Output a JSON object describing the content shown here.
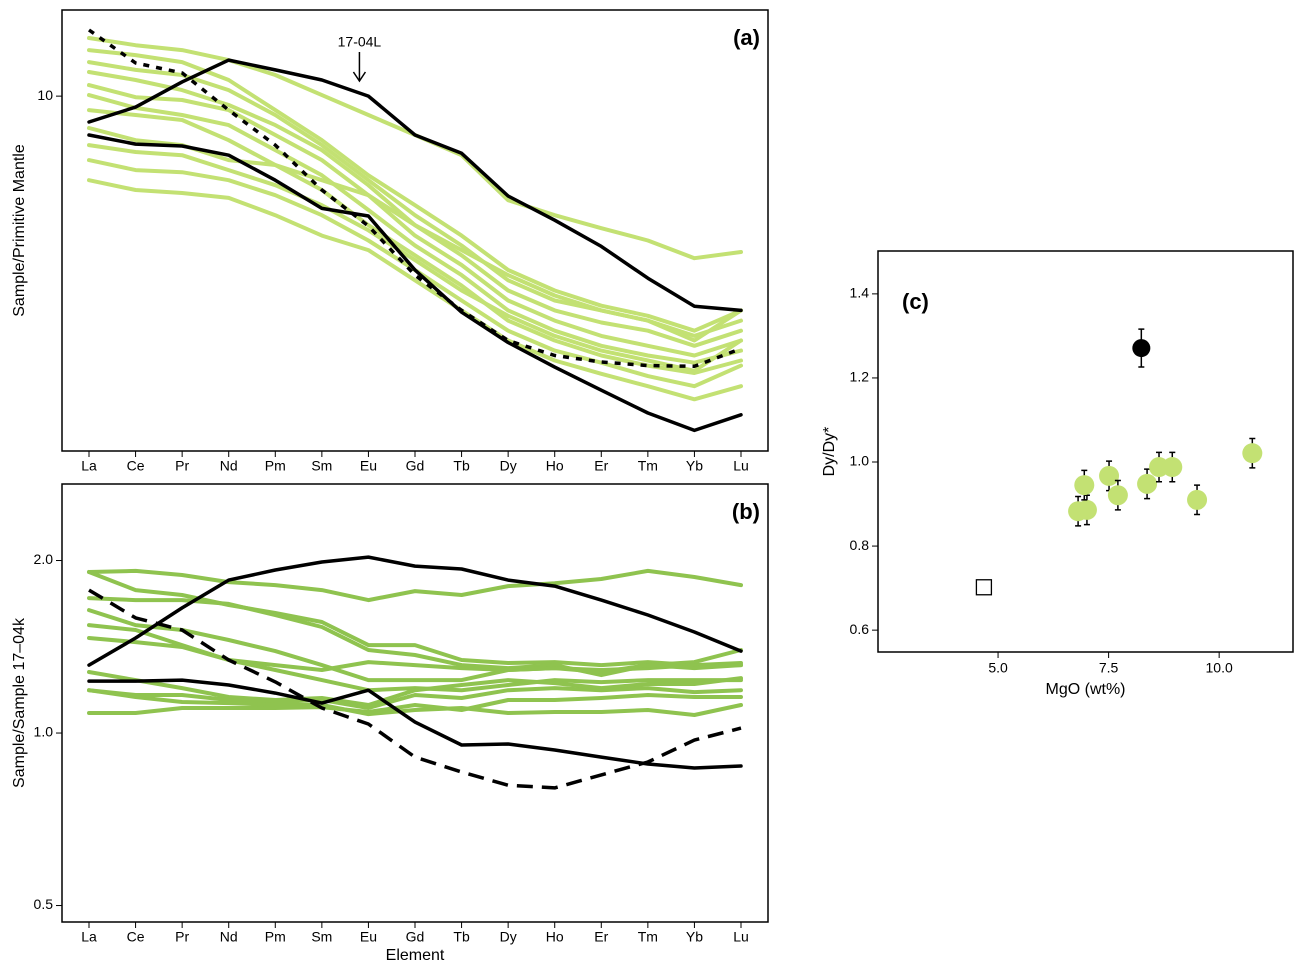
{
  "chart_data": [
    {
      "type": "line",
      "label": "(a)",
      "ylabel": "Sample/Primitive Mantle",
      "log_y": true,
      "categories": [
        "La",
        "Ce",
        "Pr",
        "Nd",
        "Pm",
        "Sm",
        "Eu",
        "Gd",
        "Tb",
        "Dy",
        "Ho",
        "Er",
        "Tm",
        "Yb",
        "Lu"
      ],
      "ylim": [
        2.5,
        14
      ],
      "yticks": [
        10
      ],
      "annotations": [
        {
          "text": "17-04L"
        }
      ],
      "series": [
        {
          "color": "#c3e173",
          "style": "solid",
          "values": [
            12.55,
            12.2,
            11.97,
            11.51,
            10.86,
            10.04,
            9.29,
            8.59,
            7.94,
            6.66,
            6.28,
            5.97,
            5.69,
            5.31,
            5.44
          ]
        },
        {
          "color": "#c3e173",
          "style": "solid",
          "values": [
            11.97,
            11.74,
            11.42,
            10.65,
            9.47,
            8.42,
            7.34,
            6.53,
            5.8,
            5.07,
            4.68,
            4.41,
            4.24,
            4.0,
            4.33
          ]
        },
        {
          "color": "#c3e173",
          "style": "solid",
          "values": [
            11.42,
            11.08,
            10.86,
            10.24,
            9.29,
            8.26,
            7.2,
            6.28,
            5.58,
            4.87,
            4.5,
            4.33,
            4.16,
            3.92,
            4.16
          ]
        },
        {
          "color": "#c3e173",
          "style": "solid",
          "values": [
            10.99,
            10.65,
            10.24,
            9.66,
            8.93,
            8.1,
            7.06,
            6.04,
            5.37,
            4.68,
            4.33,
            4.13,
            4.0,
            3.77,
            4.0
          ]
        },
        {
          "color": "#c3e173",
          "style": "solid",
          "values": [
            10.44,
            9.96,
            9.85,
            9.47,
            8.59,
            7.79,
            6.79,
            5.8,
            5.17,
            4.5,
            4.16,
            3.92,
            3.77,
            3.63,
            3.85
          ]
        },
        {
          "color": "#c3e173",
          "style": "solid",
          "values": [
            10.04,
            9.55,
            9.29,
            8.93,
            8.1,
            7.34,
            6.41,
            5.58,
            4.97,
            4.33,
            4.0,
            3.77,
            3.63,
            3.53,
            3.7
          ]
        },
        {
          "color": "#c3e173",
          "style": "solid",
          "values": [
            9.47,
            9.29,
            9.11,
            8.42,
            7.64,
            6.93,
            6.04,
            5.37,
            4.77,
            4.16,
            3.85,
            3.63,
            3.49,
            3.39,
            3.56
          ]
        },
        {
          "color": "#c3e173",
          "style": "solid",
          "values": [
            8.83,
            8.42,
            8.26,
            7.79,
            7.64,
            7.2,
            6.79,
            6.04,
            5.48,
            4.97,
            4.59,
            4.33,
            4.16,
            3.85,
            4.33
          ]
        },
        {
          "color": "#c3e173",
          "style": "solid",
          "values": [
            8.26,
            8.04,
            7.94,
            7.49,
            7.06,
            6.53,
            5.92,
            5.27,
            4.68,
            4.24,
            3.92,
            3.7,
            3.56,
            3.42,
            3.85
          ]
        },
        {
          "color": "#c3e173",
          "style": "solid",
          "values": [
            7.79,
            7.49,
            7.43,
            7.2,
            6.79,
            6.28,
            5.69,
            5.07,
            4.5,
            4.0,
            3.7,
            3.53,
            3.35,
            3.22,
            3.49
          ]
        },
        {
          "color": "#c3e173",
          "style": "solid",
          "values": [
            7.2,
            6.93,
            6.85,
            6.72,
            6.28,
            5.8,
            5.48,
            4.87,
            4.33,
            3.85,
            3.56,
            3.38,
            3.22,
            3.06,
            3.22
          ]
        },
        {
          "color": "#000000",
          "style": "solid",
          "values": [
            9.04,
            9.58,
            10.57,
            11.51,
            11.08,
            10.65,
            10.0,
            8.59,
            8.0,
            6.77,
            6.16,
            5.56,
            4.91,
            4.4,
            4.33
          ]
        },
        {
          "color": "#000000",
          "style": "solid",
          "values": [
            8.59,
            8.29,
            8.23,
            7.94,
            7.2,
            6.45,
            6.26,
            5.07,
            4.3,
            3.82,
            3.47,
            3.17,
            2.9,
            2.71,
            2.88
          ]
        },
        {
          "color": "#000000",
          "style": "dashed",
          "values": [
            12.95,
            11.38,
            10.95,
            9.47,
            8.26,
            6.93,
            6.02,
            4.97,
            4.33,
            3.85,
            3.63,
            3.54,
            3.49,
            3.48,
            3.73
          ]
        }
      ]
    },
    {
      "type": "line",
      "label": "(b)",
      "ylabel": "Sample/Sample 17–04k",
      "xlabel": "Element",
      "log_y": true,
      "categories": [
        "La",
        "Ce",
        "Pr",
        "Nd",
        "Pm",
        "Sm",
        "Eu",
        "Gd",
        "Tb",
        "Dy",
        "Ho",
        "Er",
        "Tm",
        "Yb",
        "Lu"
      ],
      "ylim": [
        0.468,
        2.72
      ],
      "yticks": [
        0.5,
        {
          "value": 1,
          "label": "1.0"
        },
        {
          "value": 2,
          "label": "2.0"
        }
      ],
      "series": [
        {
          "color": "#8fc34f",
          "style": "solid",
          "values": [
            1.91,
            1.918,
            1.887,
            1.834,
            1.812,
            1.776,
            1.706,
            1.769,
            1.741,
            1.805,
            1.826,
            1.857,
            1.918,
            1.872,
            1.812
          ]
        },
        {
          "color": "#8fc34f",
          "style": "solid",
          "values": [
            1.91,
            1.776,
            1.741,
            1.673,
            1.62,
            1.562,
            1.424,
            1.424,
            1.341,
            1.325,
            1.33,
            1.314,
            1.33,
            1.314,
            1.325
          ]
        },
        {
          "color": "#8fc34f",
          "style": "solid",
          "values": [
            1.72,
            1.706,
            1.706,
            1.68,
            1.607,
            1.531,
            1.396,
            1.368,
            1.314,
            1.298,
            1.314,
            1.262,
            1.314,
            1.33,
            1.396
          ]
        },
        {
          "color": "#8fc34f",
          "style": "solid",
          "values": [
            1.639,
            1.543,
            1.513,
            1.453,
            1.39,
            1.314,
            1.237,
            1.237,
            1.237,
            1.288,
            1.298,
            1.288,
            1.298,
            1.314,
            1.314
          ]
        },
        {
          "color": "#8fc34f",
          "style": "solid",
          "values": [
            1.465,
            1.441,
            1.413,
            1.341,
            1.314,
            1.288,
            1.33,
            1.314,
            1.298,
            1.288,
            1.298,
            1.278,
            1.314,
            1.298,
            1.314
          ]
        },
        {
          "color": "#8fc34f",
          "style": "solid",
          "values": [
            1.543,
            1.513,
            1.424,
            1.341,
            1.288,
            1.237,
            1.188,
            1.198,
            1.188,
            1.213,
            1.237,
            1.227,
            1.237,
            1.237,
            1.237
          ]
        },
        {
          "color": "#8fc34f",
          "style": "solid",
          "values": [
            1.278,
            1.237,
            1.198,
            1.156,
            1.142,
            1.151,
            1.119,
            1.188,
            1.213,
            1.237,
            1.222,
            1.198,
            1.218,
            1.218,
            1.247
          ]
        },
        {
          "color": "#8fc34f",
          "style": "solid",
          "values": [
            1.188,
            1.165,
            1.165,
            1.142,
            1.133,
            1.142,
            1.106,
            1.165,
            1.151,
            1.188,
            1.198,
            1.188,
            1.198,
            1.179,
            1.188
          ]
        },
        {
          "color": "#8fc34f",
          "style": "solid",
          "values": [
            1.084,
            1.084,
            1.106,
            1.106,
            1.106,
            1.11,
            1.088,
            1.119,
            1.097,
            1.142,
            1.142,
            1.151,
            1.165,
            1.156,
            1.156
          ]
        },
        {
          "color": "#8fc34f",
          "style": "solid",
          "values": [
            1.188,
            1.156,
            1.133,
            1.128,
            1.119,
            1.119,
            1.079,
            1.097,
            1.106,
            1.084,
            1.088,
            1.088,
            1.097,
            1.075,
            1.119
          ]
        },
        {
          "color": "#000000",
          "style": "solid",
          "values": [
            1.314,
            1.465,
            1.653,
            1.849,
            1.925,
            1.988,
            2.028,
            1.956,
            1.933,
            1.849,
            1.805,
            1.706,
            1.607,
            1.501,
            1.39
          ]
        },
        {
          "color": "#000000",
          "style": "solid",
          "values": [
            1.232,
            1.232,
            1.237,
            1.213,
            1.174,
            1.128,
            1.188,
            1.045,
            0.953,
            0.957,
            0.934,
            0.908,
            0.883,
            0.869,
            0.876
          ]
        },
        {
          "color": "#000000",
          "style": "dashed",
          "values": [
            1.776,
            1.588,
            1.513,
            1.341,
            1.228,
            1.106,
            1.037,
            0.908,
            0.855,
            0.811,
            0.802,
            0.845,
            0.89,
            0.972,
            1.02
          ]
        }
      ]
    },
    {
      "type": "scatter",
      "label": "(c)",
      "xlabel": "MgO (wt%)",
      "ylabel": "Dy/Dy*",
      "xlim": [
        2.285,
        11.67
      ],
      "xticks": [
        {
          "value": 5,
          "label": "5.0"
        },
        {
          "value": 7.5,
          "label": "7.5"
        },
        {
          "value": 10,
          "label": "10.0"
        }
      ],
      "ylim": [
        0.548,
        1.502
      ],
      "yticks": [
        0.6,
        0.8,
        {
          "value": 1,
          "label": "1.0"
        },
        1.2,
        1.4
      ],
      "series": [
        {
          "color": "#c3e173",
          "marker": "circle",
          "x": [
            6.81,
            7.01,
            6.95,
            7.51,
            7.71,
            8.37,
            8.64,
            8.94,
            9.5,
            10.75
          ],
          "y": [
            0.883,
            0.886,
            0.945,
            0.967,
            0.921,
            0.948,
            0.988,
            0.988,
            0.91,
            1.021
          ],
          "errors": [
            0.035,
            0.035,
            0.035,
            0.035,
            0.035,
            0.035,
            0.035,
            0.035,
            0.035,
            0.035
          ]
        },
        {
          "color": "#000000",
          "marker": "circle",
          "x": [
            8.24
          ],
          "y": [
            1.271
          ],
          "errors": [
            0.045
          ]
        },
        {
          "color": "#000000",
          "marker": "square",
          "x": [
            4.68
          ],
          "y": [
            0.702
          ]
        }
      ]
    }
  ]
}
